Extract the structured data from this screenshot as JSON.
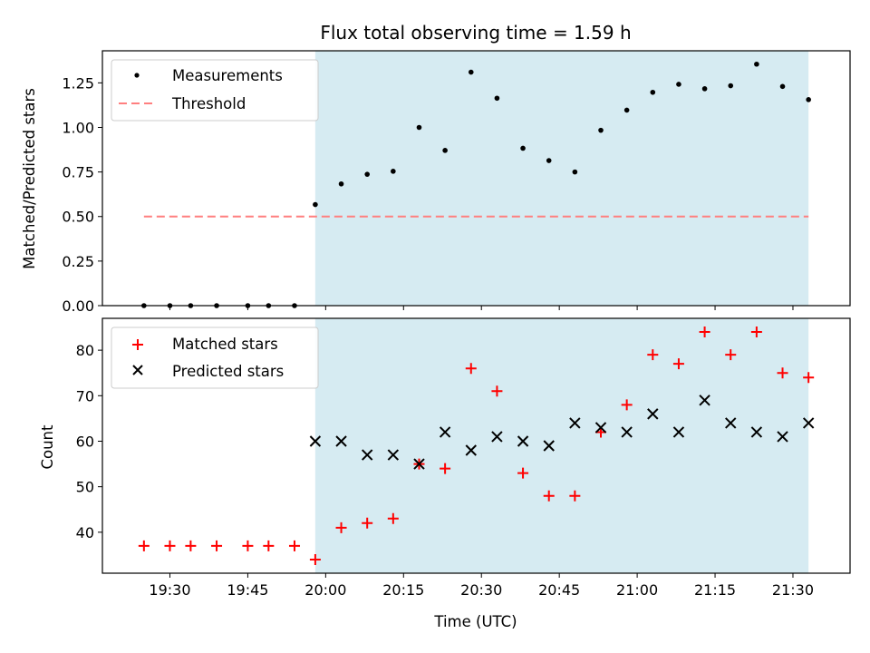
{
  "chart_data": {
    "type": "scatter",
    "title": "Flux total observing time = 1.59 h",
    "xlabel": "Time (UTC)",
    "x_tick_labels": [
      "19:30",
      "19:45",
      "20:00",
      "20:15",
      "20:30",
      "20:45",
      "21:00",
      "21:15",
      "21:30"
    ],
    "x_tick_minutes": [
      1170,
      1185,
      1200,
      1215,
      1230,
      1245,
      1260,
      1275,
      1290
    ],
    "x_range": [
      "19:17",
      "21:41"
    ],
    "shaded_region": {
      "x_start": "19:58",
      "x_end": "21:33",
      "color": "#add8e6"
    },
    "panels": [
      {
        "ylabel": "Matched/Predicted stars",
        "ylim": [
          0,
          1.43
        ],
        "y_ticks": [
          "0.00",
          "0.25",
          "0.50",
          "0.75",
          "1.00",
          "1.25"
        ],
        "legend_position": "upper left",
        "series": [
          {
            "name": "Measurements",
            "marker": "dot",
            "color": "#000000",
            "x": [
              "19:25",
              "19:30",
              "19:34",
              "19:39",
              "19:45",
              "19:49",
              "19:54",
              "19:58",
              "20:03",
              "20:08",
              "20:13",
              "20:18",
              "20:23",
              "20:28",
              "20:33",
              "20:38",
              "20:43",
              "20:48",
              "20:53",
              "20:58",
              "21:03",
              "21:08",
              "21:13",
              "21:18",
              "21:23",
              "21:28",
              "21:33"
            ],
            "y": [
              0,
              0,
              0,
              0,
              0,
              0,
              0,
              0.567,
              0.683,
              0.737,
              0.754,
              1.0,
              0.871,
              1.31,
              1.164,
              0.883,
              0.814,
              0.75,
              0.984,
              1.097,
              1.197,
              1.242,
              1.217,
              1.234,
              1.355,
              1.23,
              1.156
            ]
          },
          {
            "name": "Threshold",
            "marker": "dashed-line",
            "color": "#ff7f7f",
            "x": [
              "19:25",
              "21:33"
            ],
            "y": [
              0.5,
              0.5
            ]
          }
        ]
      },
      {
        "ylabel": "Count",
        "ylim": [
          31,
          87
        ],
        "y_ticks": [
          "40",
          "50",
          "60",
          "70",
          "80"
        ],
        "legend_position": "upper left",
        "series": [
          {
            "name": "Matched stars",
            "marker": "plus",
            "color": "#ff0000",
            "x": [
              "19:25",
              "19:30",
              "19:34",
              "19:39",
              "19:45",
              "19:49",
              "19:54",
              "19:58",
              "20:03",
              "20:08",
              "20:13",
              "20:18",
              "20:23",
              "20:28",
              "20:33",
              "20:38",
              "20:43",
              "20:48",
              "20:53",
              "20:58",
              "21:03",
              "21:08",
              "21:13",
              "21:18",
              "21:23",
              "21:28",
              "21:33"
            ],
            "y": [
              37,
              37,
              37,
              37,
              37,
              37,
              37,
              34,
              41,
              42,
              43,
              55,
              54,
              76,
              71,
              53,
              48,
              48,
              62,
              68,
              79,
              77,
              84,
              79,
              84,
              75,
              74
            ]
          },
          {
            "name": "Predicted stars",
            "marker": "x",
            "color": "#000000",
            "x": [
              "19:58",
              "20:03",
              "20:08",
              "20:13",
              "20:18",
              "20:23",
              "20:28",
              "20:33",
              "20:38",
              "20:43",
              "20:48",
              "20:53",
              "20:58",
              "21:03",
              "21:08",
              "21:13",
              "21:18",
              "21:23",
              "21:28",
              "21:33"
            ],
            "y": [
              60,
              60,
              57,
              57,
              55,
              62,
              58,
              61,
              60,
              59,
              64,
              63,
              62,
              66,
              62,
              69,
              64,
              62,
              61,
              64
            ]
          }
        ]
      }
    ]
  }
}
